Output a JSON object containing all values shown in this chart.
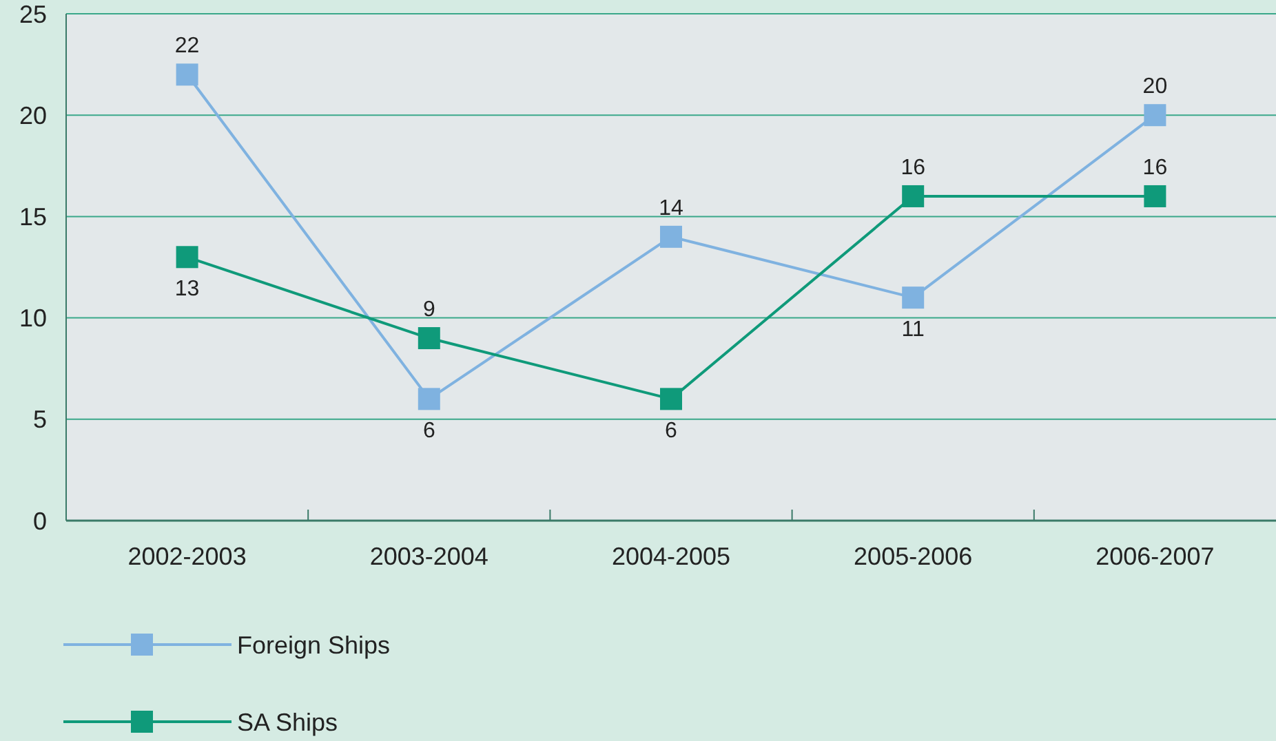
{
  "chart_data": {
    "type": "line",
    "categories": [
      "2002-2003",
      "2003-2004",
      "2004-2005",
      "2005-2006",
      "2006-2007"
    ],
    "series": [
      {
        "name": "Foreign Ships",
        "color": "#7fb2e0",
        "values": [
          22,
          6,
          14,
          11,
          20
        ]
      },
      {
        "name": "SA Ships",
        "color": "#0f9a7a",
        "values": [
          13,
          9,
          6,
          16,
          16
        ]
      }
    ],
    "ylim": [
      0,
      25
    ],
    "yticks": [
      0,
      5,
      10,
      15,
      20,
      25
    ],
    "grid": "y",
    "legend": "bottom",
    "marker": "square",
    "line_style": "solid",
    "data_labels": true
  }
}
